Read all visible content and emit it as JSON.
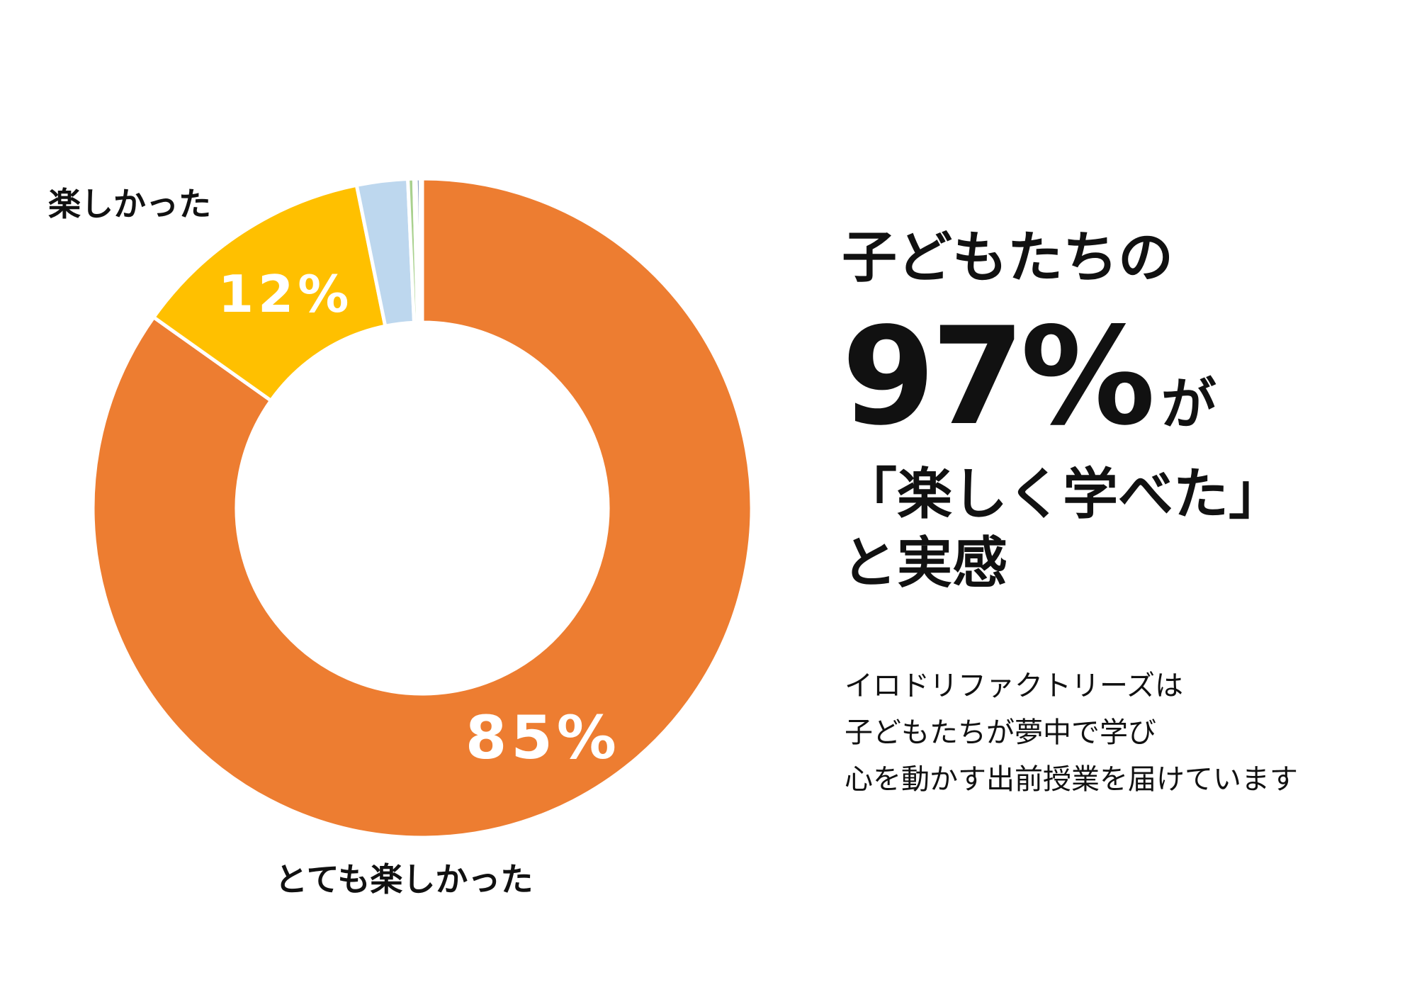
{
  "chart_data": {
    "type": "donut",
    "slices": [
      {
        "name": "とても楽しかった",
        "value": 85,
        "label": "85%",
        "color": "#ED7D31"
      },
      {
        "name": "楽しかった",
        "value": 12,
        "label": "12%",
        "color": "#FFC000"
      },
      {
        "value": 2.5,
        "color": "#BDD7EE"
      },
      {
        "value": 0.3,
        "color": "#A9D18E"
      },
      {
        "value": 0.1,
        "color": "#FFFFFF"
      },
      {
        "value": 0.2,
        "color": "#2F5597"
      },
      {
        "value": 0.1,
        "color": "#4472C4"
      }
    ]
  },
  "labels": {
    "very_fun": "とても楽しかった",
    "fun": "楽しかった"
  },
  "headline": {
    "line1": "子どもたちの",
    "percent": "97%",
    "particle": "が",
    "line3": "「楽しく学べた」",
    "line4": "と実感"
  },
  "description": {
    "line1": "イロドリファクトリーズは",
    "line2": "子どもたちが夢中で学び",
    "line3": "心を動かす出前授業を届けています"
  }
}
